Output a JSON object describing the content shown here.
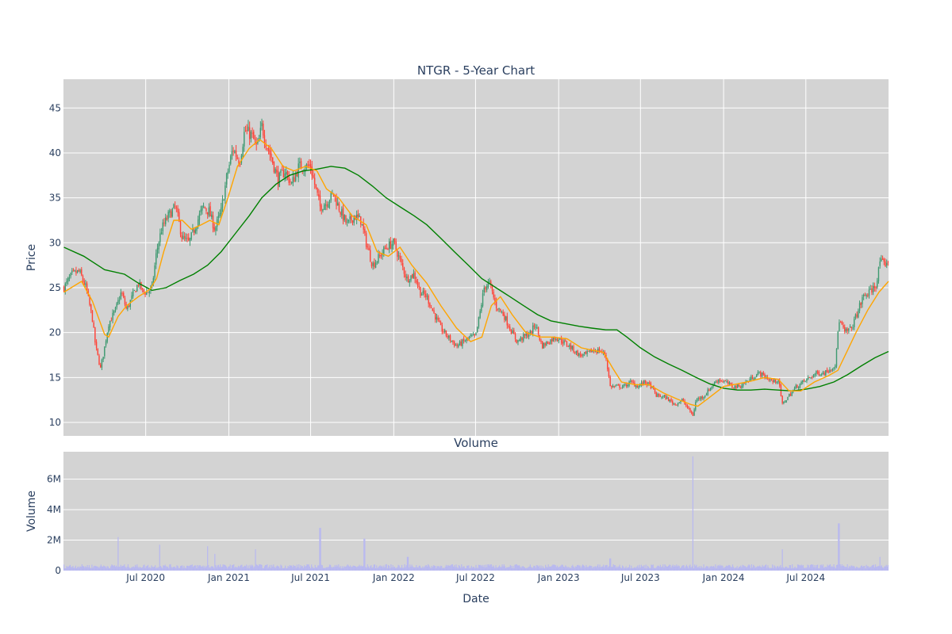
{
  "chart_data": [
    {
      "type": "candlestick",
      "title": "NTGR - 5-Year Chart",
      "ylabel": "Price",
      "xlabel": "",
      "x_range": [
        "2020-01-01",
        "2024-12-31"
      ],
      "ylim": [
        8.5,
        48.2
      ],
      "y_ticks": [
        10,
        15,
        20,
        25,
        30,
        35,
        40,
        45
      ],
      "x_ticks": [
        "2020-07-01",
        "2021-01-01",
        "2021-07-01",
        "2022-01-01",
        "2022-07-01",
        "2023-01-01",
        "2023-07-01",
        "2024-01-01",
        "2024-07-01"
      ],
      "grid": true,
      "colors": {
        "up": "#3d9970",
        "down": "#ff4136",
        "ma_short": "#ffa500",
        "ma_long": "#008000",
        "plot_bg": "#d3d3d3",
        "grid": "#ffffff"
      },
      "close_anchors": [
        [
          "2020-01-02",
          25.0
        ],
        [
          "2020-01-20",
          26.5
        ],
        [
          "2020-02-05",
          26.8
        ],
        [
          "2020-02-20",
          25.0
        ],
        [
          "2020-03-05",
          21.5
        ],
        [
          "2020-03-12",
          18.5
        ],
        [
          "2020-03-23",
          16.0
        ],
        [
          "2020-03-30",
          17.8
        ],
        [
          "2020-04-10",
          21.0
        ],
        [
          "2020-04-25",
          22.5
        ],
        [
          "2020-05-08",
          24.5
        ],
        [
          "2020-05-20",
          22.5
        ],
        [
          "2020-06-01",
          24.0
        ],
        [
          "2020-06-15",
          25.5
        ],
        [
          "2020-06-25",
          24.5
        ],
        [
          "2020-07-05",
          24.5
        ],
        [
          "2020-07-15",
          25.0
        ],
        [
          "2020-07-25",
          29.0
        ],
        [
          "2020-08-05",
          31.5
        ],
        [
          "2020-08-20",
          33.0
        ],
        [
          "2020-09-05",
          34.0
        ],
        [
          "2020-09-20",
          30.5
        ],
        [
          "2020-10-05",
          30.0
        ],
        [
          "2020-10-20",
          32.0
        ],
        [
          "2020-11-05",
          34.0
        ],
        [
          "2020-11-18",
          33.5
        ],
        [
          "2020-12-01",
          31.5
        ],
        [
          "2020-12-15",
          33.5
        ],
        [
          "2020-12-28",
          37.5
        ],
        [
          "2021-01-10",
          40.5
        ],
        [
          "2021-01-25",
          39.0
        ],
        [
          "2021-02-05",
          42.5
        ],
        [
          "2021-02-20",
          42.0
        ],
        [
          "2021-03-05",
          40.5
        ],
        [
          "2021-03-15",
          43.0
        ],
        [
          "2021-03-25",
          41.0
        ],
        [
          "2021-04-05",
          39.5
        ],
        [
          "2021-04-20",
          37.0
        ],
        [
          "2021-05-05",
          38.0
        ],
        [
          "2021-05-20",
          36.5
        ],
        [
          "2021-06-05",
          38.5
        ],
        [
          "2021-06-20",
          38.5
        ],
        [
          "2021-07-01",
          38.5
        ],
        [
          "2021-07-10",
          36.5
        ],
        [
          "2021-07-22",
          34.0
        ],
        [
          "2021-08-05",
          34.5
        ],
        [
          "2021-08-20",
          35.5
        ],
        [
          "2021-09-05",
          33.5
        ],
        [
          "2021-09-20",
          32.0
        ],
        [
          "2021-10-05",
          33.0
        ],
        [
          "2021-10-20",
          32.5
        ],
        [
          "2021-11-01",
          30.0
        ],
        [
          "2021-11-15",
          27.5
        ],
        [
          "2021-12-01",
          28.5
        ],
        [
          "2021-12-15",
          29.5
        ],
        [
          "2022-01-01",
          30.0
        ],
        [
          "2022-01-15",
          28.0
        ],
        [
          "2022-01-30",
          26.0
        ],
        [
          "2022-02-15",
          26.5
        ],
        [
          "2022-03-01",
          24.5
        ],
        [
          "2022-03-15",
          24.0
        ],
        [
          "2022-04-01",
          22.0
        ],
        [
          "2022-04-15",
          20.5
        ],
        [
          "2022-05-01",
          19.5
        ],
        [
          "2022-05-20",
          18.5
        ],
        [
          "2022-06-05",
          19.0
        ],
        [
          "2022-06-20",
          19.5
        ],
        [
          "2022-07-01",
          19.5
        ],
        [
          "2022-07-10",
          22.0
        ],
        [
          "2022-07-20",
          25.0
        ],
        [
          "2022-08-01",
          25.5
        ],
        [
          "2022-08-15",
          23.0
        ],
        [
          "2022-09-01",
          22.0
        ],
        [
          "2022-09-15",
          20.5
        ],
        [
          "2022-10-01",
          19.0
        ],
        [
          "2022-10-15",
          19.5
        ],
        [
          "2022-11-01",
          20.0
        ],
        [
          "2022-11-10",
          21.0
        ],
        [
          "2022-11-25",
          18.5
        ],
        [
          "2022-12-10",
          19.0
        ],
        [
          "2022-12-25",
          19.5
        ],
        [
          "2023-01-10",
          19.0
        ],
        [
          "2023-01-25",
          18.5
        ],
        [
          "2023-02-15",
          17.5
        ],
        [
          "2023-03-01",
          17.5
        ],
        [
          "2023-03-15",
          18.0
        ],
        [
          "2023-04-01",
          18.0
        ],
        [
          "2023-04-15",
          17.5
        ],
        [
          "2023-04-25",
          14.0
        ],
        [
          "2023-05-10",
          14.0
        ],
        [
          "2023-05-25",
          14.0
        ],
        [
          "2023-06-10",
          14.5
        ],
        [
          "2023-06-25",
          14.0
        ],
        [
          "2023-07-10",
          14.5
        ],
        [
          "2023-07-25",
          14.0
        ],
        [
          "2023-08-05",
          13.0
        ],
        [
          "2023-08-25",
          12.8
        ],
        [
          "2023-09-15",
          12.0
        ],
        [
          "2023-10-01",
          12.5
        ],
        [
          "2023-10-15",
          11.5
        ],
        [
          "2023-10-25",
          10.8
        ],
        [
          "2023-11-01",
          12.5
        ],
        [
          "2023-11-20",
          13.0
        ],
        [
          "2023-12-05",
          14.0
        ],
        [
          "2023-12-20",
          14.8
        ],
        [
          "2024-01-05",
          14.5
        ],
        [
          "2024-01-20",
          14.0
        ],
        [
          "2024-02-05",
          14.0
        ],
        [
          "2024-02-20",
          14.5
        ],
        [
          "2024-03-05",
          15.0
        ],
        [
          "2024-03-20",
          15.5
        ],
        [
          "2024-04-05",
          15.0
        ],
        [
          "2024-04-20",
          14.5
        ],
        [
          "2024-05-01",
          14.8
        ],
        [
          "2024-05-10",
          12.0
        ],
        [
          "2024-05-25",
          13.0
        ],
        [
          "2024-06-10",
          14.0
        ],
        [
          "2024-06-25",
          14.5
        ],
        [
          "2024-07-10",
          15.0
        ],
        [
          "2024-07-25",
          15.5
        ],
        [
          "2024-08-10",
          15.5
        ],
        [
          "2024-08-25",
          16.0
        ],
        [
          "2024-09-05",
          16.5
        ],
        [
          "2024-09-12",
          21.5
        ],
        [
          "2024-09-25",
          20.0
        ],
        [
          "2024-10-10",
          20.5
        ],
        [
          "2024-10-25",
          22.5
        ],
        [
          "2024-11-05",
          24.0
        ],
        [
          "2024-11-20",
          24.5
        ],
        [
          "2024-12-05",
          25.5
        ],
        [
          "2024-12-12",
          28.0
        ],
        [
          "2024-12-20",
          27.5
        ],
        [
          "2024-12-30",
          28.0
        ]
      ],
      "ma_short": [
        [
          "2020-01-02",
          24.5
        ],
        [
          "2020-02-10",
          25.7
        ],
        [
          "2020-03-05",
          23.5
        ],
        [
          "2020-04-01",
          19.8
        ],
        [
          "2020-04-10",
          19.5
        ],
        [
          "2020-05-01",
          21.8
        ],
        [
          "2020-05-20",
          23.0
        ],
        [
          "2020-06-15",
          24.0
        ],
        [
          "2020-07-10",
          24.8
        ],
        [
          "2020-07-25",
          26.0
        ],
        [
          "2020-08-10",
          29.0
        ],
        [
          "2020-09-01",
          32.5
        ],
        [
          "2020-09-20",
          32.5
        ],
        [
          "2020-10-10",
          31.5
        ],
        [
          "2020-11-01",
          32.0
        ],
        [
          "2020-11-20",
          32.5
        ],
        [
          "2020-12-10",
          32.0
        ],
        [
          "2020-12-30",
          35.0
        ],
        [
          "2021-01-20",
          38.5
        ],
        [
          "2021-02-15",
          40.5
        ],
        [
          "2021-03-10",
          41.5
        ],
        [
          "2021-04-05",
          40.5
        ],
        [
          "2021-05-01",
          38.5
        ],
        [
          "2021-05-25",
          38.0
        ],
        [
          "2021-06-20",
          38.5
        ],
        [
          "2021-07-15",
          38.0
        ],
        [
          "2021-08-05",
          36.0
        ],
        [
          "2021-09-01",
          35.0
        ],
        [
          "2021-10-01",
          33.0
        ],
        [
          "2021-11-01",
          32.0
        ],
        [
          "2021-11-25",
          29.0
        ],
        [
          "2021-12-20",
          28.5
        ],
        [
          "2022-01-15",
          29.5
        ],
        [
          "2022-02-10",
          27.5
        ],
        [
          "2022-03-15",
          25.5
        ],
        [
          "2022-04-15",
          23.0
        ],
        [
          "2022-05-20",
          20.5
        ],
        [
          "2022-06-20",
          19.0
        ],
        [
          "2022-07-15",
          19.5
        ],
        [
          "2022-08-05",
          23.0
        ],
        [
          "2022-08-25",
          24.0
        ],
        [
          "2022-09-20",
          22.0
        ],
        [
          "2022-10-20",
          20.0
        ],
        [
          "2022-11-20",
          19.5
        ],
        [
          "2022-12-20",
          19.5
        ],
        [
          "2023-01-20",
          19.3
        ],
        [
          "2023-02-20",
          18.3
        ],
        [
          "2023-03-20",
          18.0
        ],
        [
          "2023-04-10",
          17.8
        ],
        [
          "2023-05-01",
          16.0
        ],
        [
          "2023-05-20",
          14.5
        ],
        [
          "2023-06-20",
          14.2
        ],
        [
          "2023-07-20",
          14.2
        ],
        [
          "2023-08-20",
          13.3
        ],
        [
          "2023-09-20",
          12.6
        ],
        [
          "2023-10-20",
          12.0
        ],
        [
          "2023-11-05",
          11.8
        ],
        [
          "2023-12-01",
          12.8
        ],
        [
          "2024-01-01",
          14.0
        ],
        [
          "2024-02-01",
          14.3
        ],
        [
          "2024-03-01",
          14.6
        ],
        [
          "2024-04-01",
          15.0
        ],
        [
          "2024-05-01",
          14.8
        ],
        [
          "2024-05-25",
          13.5
        ],
        [
          "2024-06-20",
          13.5
        ],
        [
          "2024-07-20",
          14.5
        ],
        [
          "2024-08-20",
          15.2
        ],
        [
          "2024-09-10",
          15.8
        ],
        [
          "2024-10-01",
          18.0
        ],
        [
          "2024-10-20",
          20.0
        ],
        [
          "2024-11-15",
          22.5
        ],
        [
          "2024-12-10",
          24.5
        ],
        [
          "2024-12-31",
          25.7
        ]
      ],
      "ma_long": [
        [
          "2020-01-02",
          29.5
        ],
        [
          "2020-02-15",
          28.5
        ],
        [
          "2020-04-01",
          27.0
        ],
        [
          "2020-05-15",
          26.5
        ],
        [
          "2020-06-15",
          25.5
        ],
        [
          "2020-07-15",
          24.7
        ],
        [
          "2020-08-15",
          25.0
        ],
        [
          "2020-09-15",
          25.8
        ],
        [
          "2020-10-15",
          26.5
        ],
        [
          "2020-11-15",
          27.5
        ],
        [
          "2020-12-15",
          29.0
        ],
        [
          "2021-01-15",
          31.0
        ],
        [
          "2021-02-15",
          33.0
        ],
        [
          "2021-03-15",
          35.0
        ],
        [
          "2021-04-15",
          36.5
        ],
        [
          "2021-05-15",
          37.5
        ],
        [
          "2021-06-15",
          38.0
        ],
        [
          "2021-07-15",
          38.2
        ],
        [
          "2021-08-15",
          38.5
        ],
        [
          "2021-09-15",
          38.3
        ],
        [
          "2021-10-15",
          37.5
        ],
        [
          "2021-11-15",
          36.3
        ],
        [
          "2021-12-15",
          35.0
        ],
        [
          "2022-01-15",
          34.0
        ],
        [
          "2022-02-15",
          33.0
        ],
        [
          "2022-03-15",
          32.0
        ],
        [
          "2022-04-15",
          30.5
        ],
        [
          "2022-05-15",
          29.0
        ],
        [
          "2022-06-15",
          27.5
        ],
        [
          "2022-07-15",
          26.0
        ],
        [
          "2022-08-15",
          25.0
        ],
        [
          "2022-09-15",
          24.0
        ],
        [
          "2022-10-15",
          23.0
        ],
        [
          "2022-11-15",
          22.0
        ],
        [
          "2022-12-15",
          21.3
        ],
        [
          "2023-01-15",
          21.0
        ],
        [
          "2023-02-15",
          20.7
        ],
        [
          "2023-03-15",
          20.5
        ],
        [
          "2023-04-15",
          20.3
        ],
        [
          "2023-05-10",
          20.3
        ],
        [
          "2023-06-01",
          19.5
        ],
        [
          "2023-07-01",
          18.3
        ],
        [
          "2023-08-01",
          17.3
        ],
        [
          "2023-09-01",
          16.5
        ],
        [
          "2023-10-01",
          15.8
        ],
        [
          "2023-11-01",
          15.0
        ],
        [
          "2023-12-01",
          14.3
        ],
        [
          "2024-01-01",
          13.8
        ],
        [
          "2024-02-01",
          13.6
        ],
        [
          "2024-03-01",
          13.6
        ],
        [
          "2024-04-01",
          13.7
        ],
        [
          "2024-05-01",
          13.6
        ],
        [
          "2024-06-01",
          13.5
        ],
        [
          "2024-07-01",
          13.7
        ],
        [
          "2024-08-01",
          14.0
        ],
        [
          "2024-09-01",
          14.5
        ],
        [
          "2024-10-01",
          15.3
        ],
        [
          "2024-11-01",
          16.3
        ],
        [
          "2024-12-01",
          17.2
        ],
        [
          "2024-12-31",
          17.9
        ]
      ]
    },
    {
      "type": "bar",
      "title": "Volume",
      "xlabel": "Date",
      "ylabel": "Volume",
      "ylim": [
        0,
        7800000
      ],
      "y_ticks": [
        0,
        2000000,
        4000000,
        6000000
      ],
      "y_tick_labels": [
        "0",
        "2M",
        "4M",
        "6M"
      ],
      "x_ticks": [
        "2020-07-01",
        "2021-01-01",
        "2021-07-01",
        "2022-01-01",
        "2022-07-01",
        "2023-01-01",
        "2023-07-01",
        "2024-01-01",
        "2024-07-01"
      ],
      "x_tick_labels": [
        "Jul 2020",
        "Jan 2021",
        "Jul 2021",
        "Jan 2022",
        "Jul 2022",
        "Jan 2023",
        "Jul 2023",
        "Jan 2024",
        "Jul 2024"
      ],
      "bar_color": "#b8b8f0",
      "base_volume": 300000,
      "spikes": [
        [
          "2020-05-01",
          2200000
        ],
        [
          "2020-08-01",
          1700000
        ],
        [
          "2020-11-15",
          1600000
        ],
        [
          "2020-12-01",
          1100000
        ],
        [
          "2021-03-01",
          1400000
        ],
        [
          "2021-07-22",
          2800000
        ],
        [
          "2021-10-28",
          2100000
        ],
        [
          "2022-02-01",
          900000
        ],
        [
          "2023-04-25",
          800000
        ],
        [
          "2023-10-25",
          7500000
        ],
        [
          "2024-05-10",
          1400000
        ],
        [
          "2024-09-12",
          3100000
        ],
        [
          "2024-12-12",
          900000
        ]
      ]
    }
  ]
}
